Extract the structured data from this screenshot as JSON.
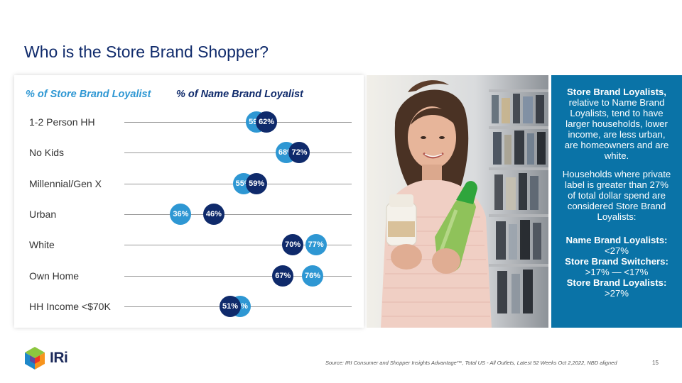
{
  "slide": {
    "title": "Who is the Store Brand Shopper?",
    "page_number": "15",
    "source": "Source: IRI Consumer and Shopper Insights Advantage™, Total US - All Outlets, Latest 52 Weeks Oct 2,2022, NBD aligned"
  },
  "legend": {
    "store": "% of Store Brand Loyalist",
    "name": "% of Name Brand Loyalist"
  },
  "colors": {
    "store": "#2e97d3",
    "name": "#0f2a6b",
    "info_bg": "#0a73a7"
  },
  "rows": [
    {
      "label": "1-2 Person HH",
      "store": 59,
      "name": 62,
      "store_label": "59%",
      "name_label": "62%"
    },
    {
      "label": "No Kids",
      "store": 68,
      "name": 72,
      "store_label": "68%",
      "name_label": "72%"
    },
    {
      "label": "Millennial/Gen X",
      "store": 55,
      "name": 59,
      "store_label": "55%",
      "name_label": "59%"
    },
    {
      "label": "Urban",
      "store": 36,
      "name": 46,
      "store_label": "36%",
      "name_label": "46%"
    },
    {
      "label": "White",
      "store": 77,
      "name": 70,
      "store_label": "77%",
      "name_label": "70%"
    },
    {
      "label": "Own Home",
      "store": 76,
      "name": 67,
      "store_label": "76%",
      "name_label": "67%"
    },
    {
      "label": "HH Income <$70K",
      "store": 54,
      "name": 51,
      "store_label": "54%",
      "name_label": "51%"
    }
  ],
  "infobox": {
    "p1_bold": "Store Brand Loyalists,",
    "p1_rest": " relative to Name Brand Loyalists, tend to have larger households, lower income, are less urban, are homeowners and are white.",
    "p2": "Households where private label is greater than 27% of total dollar spend are considered Store Brand Loyalists:",
    "segments": [
      {
        "name": "Name Brand Loyalists:",
        "range": "<27%"
      },
      {
        "name": "Store Brand Switchers:",
        "range": ">17% — <17%"
      },
      {
        "name": "Store Brand Loyalists:",
        "range": ">27%"
      }
    ]
  },
  "logo": {
    "text": "IRi"
  }
}
